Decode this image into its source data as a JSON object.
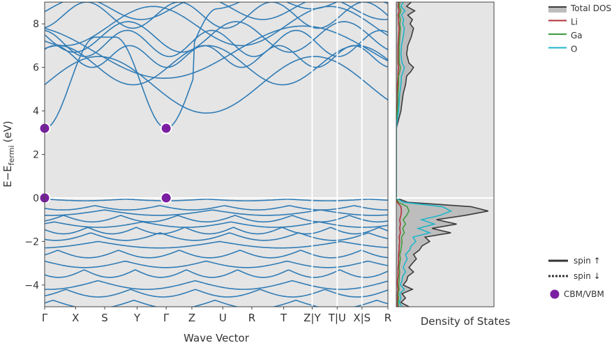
{
  "chart_data": [
    {
      "type": "line",
      "panel": "band-structure",
      "xlabel": "Wave Vector",
      "ylabel_main": "E−E",
      "ylabel_sub": "fermi",
      "ylabel_unit": "(eV)",
      "ylim": [
        -5,
        9
      ],
      "yticks": [
        -4,
        -2,
        0,
        2,
        4,
        6,
        8
      ],
      "grid": false,
      "kpoints": [
        {
          "label": "Γ",
          "k": 0.0
        },
        {
          "label": "X",
          "k": 1.0
        },
        {
          "label": "S",
          "k": 1.94
        },
        {
          "label": "Y",
          "k": 2.99
        },
        {
          "label": "Γ",
          "k": 3.93
        },
        {
          "label": "Z",
          "k": 4.76
        },
        {
          "label": "U",
          "k": 5.76
        },
        {
          "label": "R",
          "k": 6.7
        },
        {
          "label": "T",
          "k": 7.73
        },
        {
          "label": "Z|Y",
          "k": 8.65
        },
        {
          "label": "T|U",
          "k": 9.46
        },
        {
          "label": "X|S",
          "k": 10.26
        },
        {
          "label": "R",
          "k": 11.1
        }
      ],
      "breaks": [
        8.65,
        9.46,
        10.26
      ],
      "series_color": "#2f7bb5",
      "cbm_vbm": {
        "label": "CBM/VBM",
        "color": "#7b1fa2",
        "points": [
          {
            "k": 0.0,
            "e": 3.2
          },
          {
            "k": 3.93,
            "e": 3.2
          },
          {
            "k": 0.0,
            "e": 0.0
          },
          {
            "k": 3.93,
            "e": 0.0
          }
        ]
      },
      "fermi_level": 0
    },
    {
      "type": "area",
      "panel": "density-of-states",
      "xlabel": "Density of States",
      "ylim": [
        -5,
        9
      ],
      "energy": [
        -5.0,
        -4.8,
        -4.6,
        -4.4,
        -4.2,
        -4.0,
        -3.8,
        -3.6,
        -3.4,
        -3.2,
        -3.0,
        -2.8,
        -2.6,
        -2.4,
        -2.2,
        -2.0,
        -1.8,
        -1.6,
        -1.4,
        -1.2,
        -1.0,
        -0.8,
        -0.6,
        -0.4,
        -0.2,
        0.0,
        3.2,
        3.6,
        4.0,
        4.4,
        4.8,
        5.2,
        5.6,
        5.8,
        6.0,
        6.2,
        6.6,
        7.0,
        7.4,
        7.8,
        8.0,
        8.2,
        8.4,
        8.6,
        8.8,
        9.0
      ],
      "series": [
        {
          "name": "Total DOS",
          "color": "#3a3a3a",
          "fill": "#bdbdbd",
          "values": [
            0.22,
            0.08,
            0.16,
            0.1,
            0.28,
            0.12,
            0.18,
            0.2,
            0.3,
            0.22,
            0.28,
            0.35,
            0.3,
            0.4,
            0.45,
            0.58,
            0.5,
            0.95,
            0.62,
            1.05,
            0.7,
            1.2,
            1.6,
            1.3,
            0.2,
            0.0,
            0.0,
            0.04,
            0.08,
            0.1,
            0.12,
            0.16,
            0.18,
            0.25,
            0.3,
            0.22,
            0.18,
            0.2,
            0.26,
            0.3,
            0.24,
            0.28,
            0.2,
            0.32,
            0.18,
            0.26
          ]
        },
        {
          "name": "Li",
          "color": "#b22e37",
          "values": [
            0.02,
            0.02,
            0.02,
            0.02,
            0.03,
            0.02,
            0.02,
            0.03,
            0.03,
            0.03,
            0.04,
            0.04,
            0.04,
            0.05,
            0.05,
            0.06,
            0.05,
            0.07,
            0.06,
            0.07,
            0.06,
            0.08,
            0.09,
            0.08,
            0.02,
            0.0,
            0.0,
            0.01,
            0.01,
            0.02,
            0.02,
            0.02,
            0.03,
            0.03,
            0.04,
            0.03,
            0.03,
            0.03,
            0.04,
            0.05,
            0.04,
            0.04,
            0.03,
            0.05,
            0.03,
            0.04
          ]
        },
        {
          "name": "Ga",
          "color": "#3e9a3e",
          "values": [
            0.04,
            0.03,
            0.04,
            0.03,
            0.05,
            0.04,
            0.05,
            0.05,
            0.06,
            0.05,
            0.06,
            0.07,
            0.06,
            0.08,
            0.09,
            0.1,
            0.09,
            0.14,
            0.11,
            0.16,
            0.12,
            0.18,
            0.22,
            0.19,
            0.04,
            0.0,
            0.0,
            0.01,
            0.02,
            0.03,
            0.03,
            0.04,
            0.04,
            0.06,
            0.07,
            0.05,
            0.05,
            0.05,
            0.06,
            0.07,
            0.06,
            0.07,
            0.05,
            0.08,
            0.05,
            0.06
          ]
        },
        {
          "name": "O",
          "color": "#1fb5c9",
          "values": [
            0.1,
            0.05,
            0.08,
            0.06,
            0.14,
            0.07,
            0.1,
            0.11,
            0.16,
            0.12,
            0.15,
            0.19,
            0.16,
            0.23,
            0.26,
            0.34,
            0.29,
            0.58,
            0.38,
            0.66,
            0.44,
            0.76,
            0.95,
            0.8,
            0.12,
            0.0,
            0.0,
            0.02,
            0.04,
            0.05,
            0.06,
            0.08,
            0.09,
            0.12,
            0.14,
            0.1,
            0.08,
            0.09,
            0.12,
            0.14,
            0.11,
            0.13,
            0.09,
            0.15,
            0.08,
            0.12
          ]
        }
      ],
      "legend": {
        "placement": "top-right",
        "entries": [
          "Total DOS",
          "Li",
          "Ga",
          "O"
        ],
        "line_styles": [
          {
            "label": "spin ↑",
            "style": "solid"
          },
          {
            "label": "spin ↓",
            "style": "dotted"
          }
        ],
        "marker_label": "CBM/VBM"
      }
    }
  ]
}
